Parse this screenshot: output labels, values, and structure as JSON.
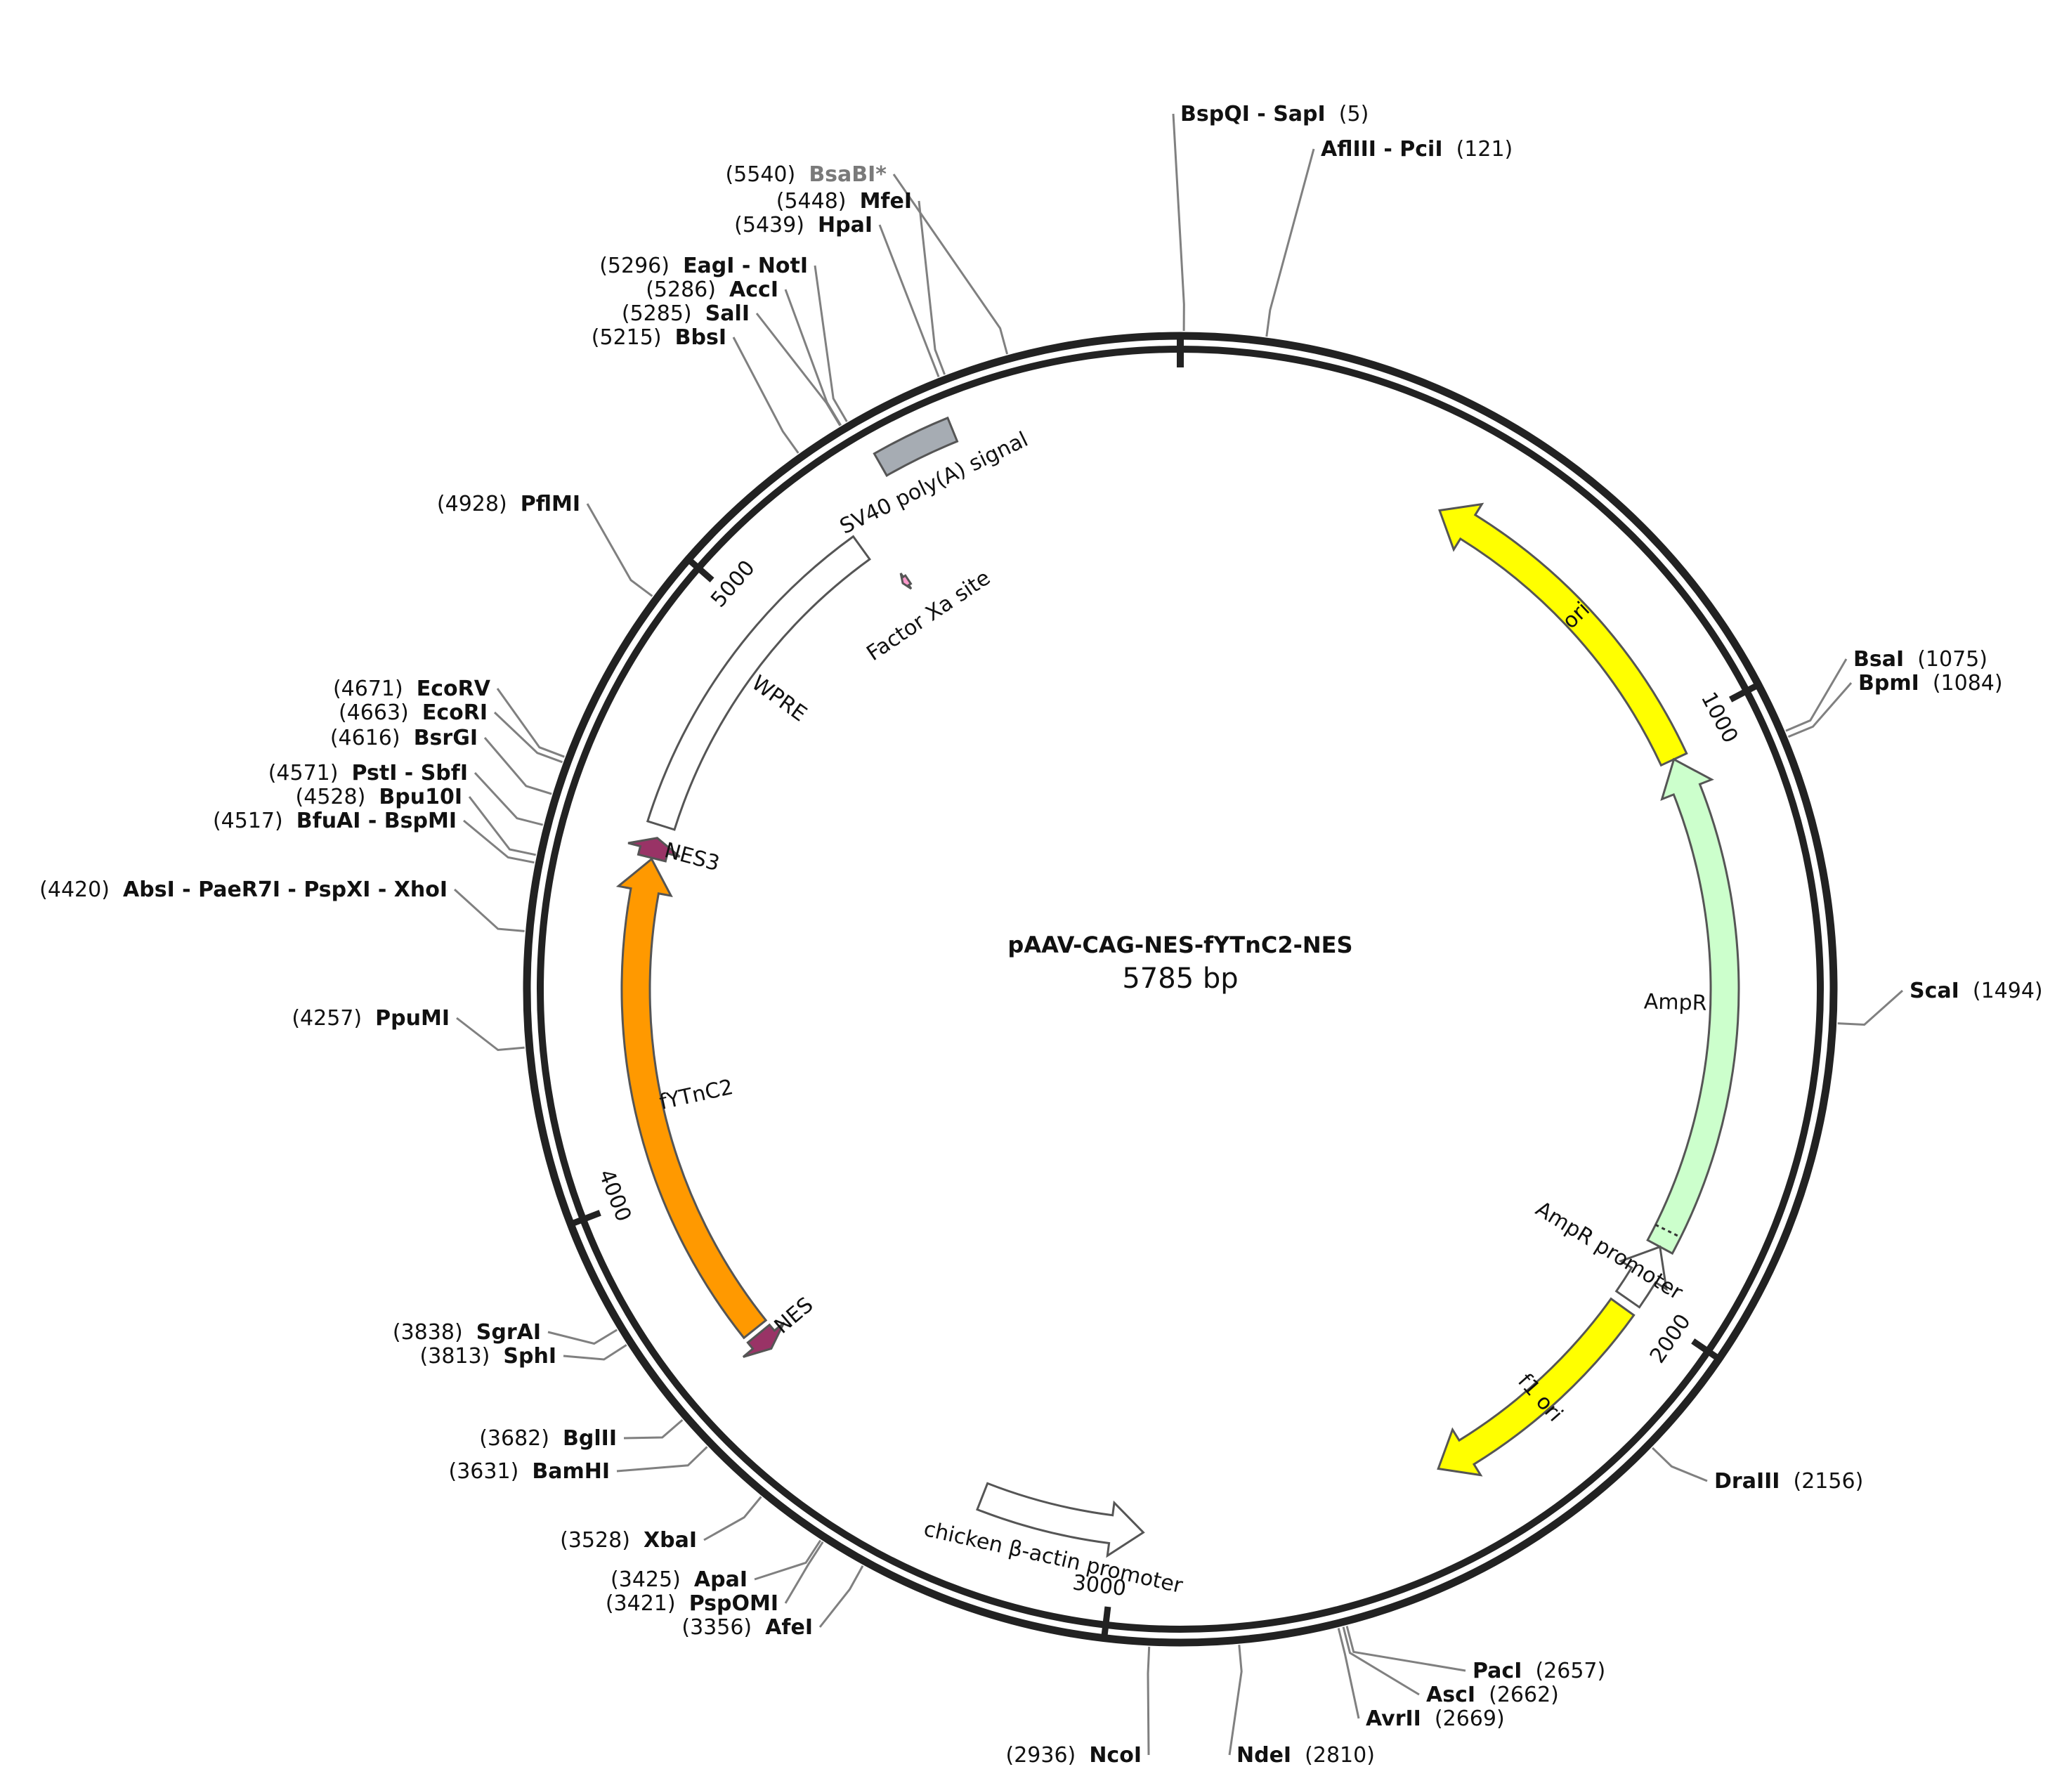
{
  "plasmid": {
    "name": "pAAV-CAG-NES-fYTnC2-NES",
    "length_label": "5785 bp",
    "length": 5785
  },
  "ticks": [
    {
      "pos": 1000,
      "label": "1000"
    },
    {
      "pos": 2000,
      "label": "2000"
    },
    {
      "pos": 3000,
      "label": "3000"
    },
    {
      "pos": 4000,
      "label": "4000"
    },
    {
      "pos": 5000,
      "label": "5000"
    }
  ],
  "features": [
    {
      "id": "ori",
      "label": "ori",
      "start": 1045,
      "end": 457,
      "dir": "ccw",
      "color": "#ffff00"
    },
    {
      "id": "ampr",
      "label": "AmpR",
      "start": 1900,
      "end": 1045,
      "dir": "ccw",
      "color": "#ccffcc"
    },
    {
      "id": "ampr-promoter",
      "label": "AmpR promoter",
      "start": 2004,
      "end": 1900,
      "dir": "ccw",
      "color": "#ffffff"
    },
    {
      "id": "f1-ori",
      "label": "f1 ori",
      "start": 2438,
      "end": 2020,
      "dir": "cw",
      "color": "#ffff00"
    },
    {
      "id": "chicken-actin-promoter",
      "label": "chicken β-actin promoter",
      "start": 2955,
      "end": 3235,
      "dir": "ccw",
      "color": "#ffffff"
    },
    {
      "id": "nes",
      "label": "NES",
      "start": 3675,
      "end": 3708,
      "dir": "ccw",
      "color": "#993366"
    },
    {
      "id": "fytnc2",
      "label": "fYTnC2",
      "start": 3718,
      "end": 4561,
      "dir": "cw",
      "color": "#ff9900"
    },
    {
      "id": "nes3",
      "label": "NES3",
      "start": 4563,
      "end": 4598,
      "dir": "cw",
      "color": "#993366"
    },
    {
      "id": "wpre",
      "label": "WPRE",
      "start": 4620,
      "end": 5209,
      "dir": "none",
      "color": "#ffffff"
    },
    {
      "id": "factor-xa-site",
      "label": "Factor Xa site",
      "start": 5233,
      "end": 5245,
      "dir": "ccw",
      "color": "#ff99cc"
    },
    {
      "id": "sv40-polya",
      "label": "SV40 poly(A) signal",
      "start": 5307,
      "end": 5429,
      "dir": "none",
      "color": "#a6acb3"
    }
  ],
  "sites": [
    {
      "id": "bspqi-sapi",
      "name": "BspQI - SapI",
      "pos_label": "(5)",
      "pos": 5,
      "side": "right",
      "grey": false
    },
    {
      "id": "afliii-pcii",
      "name": "AflIII - PciI",
      "pos_label": "(121)",
      "pos": 121,
      "side": "right",
      "grey": false
    },
    {
      "id": "bsai",
      "name": "BsaI",
      "pos_label": "(1075)",
      "pos": 1075,
      "side": "right",
      "grey": false
    },
    {
      "id": "bpmi",
      "name": "BpmI",
      "pos_label": "(1084)",
      "pos": 1084,
      "side": "right",
      "grey": false
    },
    {
      "id": "scai",
      "name": "ScaI",
      "pos_label": "(1494)",
      "pos": 1494,
      "side": "right",
      "grey": false
    },
    {
      "id": "draiii",
      "name": "DraIII",
      "pos_label": "(2156)",
      "pos": 2156,
      "side": "right",
      "grey": false
    },
    {
      "id": "paci",
      "name": "PacI",
      "pos_label": "(2657)",
      "pos": 2657,
      "side": "right",
      "grey": false
    },
    {
      "id": "asci",
      "name": "AscI",
      "pos_label": "(2662)",
      "pos": 2662,
      "side": "right",
      "grey": false
    },
    {
      "id": "avrii",
      "name": "AvrII",
      "pos_label": "(2669)",
      "pos": 2669,
      "side": "right",
      "grey": false
    },
    {
      "id": "ndei",
      "name": "NdeI",
      "pos_label": "(2810)",
      "pos": 2810,
      "side": "right",
      "grey": false
    },
    {
      "id": "ncoi",
      "name": "NcoI",
      "pos_label": "(2936)",
      "pos": 2936,
      "side": "left",
      "grey": false
    },
    {
      "id": "afei",
      "name": "AfeI",
      "pos_label": "(3356)",
      "pos": 3356,
      "side": "left",
      "grey": false
    },
    {
      "id": "pspomi",
      "name": "PspOMI",
      "pos_label": "(3421)",
      "pos": 3421,
      "side": "left",
      "grey": false
    },
    {
      "id": "apai",
      "name": "ApaI",
      "pos_label": "(3425)",
      "pos": 3425,
      "side": "left",
      "grey": false
    },
    {
      "id": "xbai",
      "name": "XbaI",
      "pos_label": "(3528)",
      "pos": 3528,
      "side": "left",
      "grey": false
    },
    {
      "id": "bamhi",
      "name": "BamHI",
      "pos_label": "(3631)",
      "pos": 3631,
      "side": "left",
      "grey": false
    },
    {
      "id": "bglii",
      "name": "BglII",
      "pos_label": "(3682)",
      "pos": 3682,
      "side": "left",
      "grey": false
    },
    {
      "id": "sphi",
      "name": "SphI",
      "pos_label": "(3813)",
      "pos": 3813,
      "side": "left",
      "grey": false
    },
    {
      "id": "sgrai",
      "name": "SgrAI",
      "pos_label": "(3838)",
      "pos": 3838,
      "side": "left",
      "grey": false
    },
    {
      "id": "ppumi",
      "name": "PpuMI",
      "pos_label": "(4257)",
      "pos": 4257,
      "side": "left",
      "grey": false
    },
    {
      "id": "absi",
      "name": "AbsI - PaeR7I - PspXI - XhoI",
      "pos_label": "(4420)",
      "pos": 4420,
      "side": "left",
      "grey": false
    },
    {
      "id": "bfuai",
      "name": "BfuAI - BspMI",
      "pos_label": "(4517)",
      "pos": 4517,
      "side": "left",
      "grey": false
    },
    {
      "id": "bpu10i",
      "name": "Bpu10I",
      "pos_label": "(4528)",
      "pos": 4528,
      "side": "left",
      "grey": false
    },
    {
      "id": "psti-sbfi",
      "name": "PstI - SbfI",
      "pos_label": "(4571)",
      "pos": 4571,
      "side": "left",
      "grey": false
    },
    {
      "id": "bsrgi",
      "name": "BsrGI",
      "pos_label": "(4616)",
      "pos": 4616,
      "side": "left",
      "grey": false
    },
    {
      "id": "ecori",
      "name": "EcoRI",
      "pos_label": "(4663)",
      "pos": 4663,
      "side": "left",
      "grey": false
    },
    {
      "id": "ecorv",
      "name": "EcoRV",
      "pos_label": "(4671)",
      "pos": 4671,
      "side": "left",
      "grey": false
    },
    {
      "id": "pflmi",
      "name": "PflMI",
      "pos_label": "(4928)",
      "pos": 4928,
      "side": "left",
      "grey": false
    },
    {
      "id": "bbsi",
      "name": "BbsI",
      "pos_label": "(5215)",
      "pos": 5215,
      "side": "left",
      "grey": false
    },
    {
      "id": "sali",
      "name": "SalI",
      "pos_label": "(5285)",
      "pos": 5285,
      "side": "left",
      "grey": false
    },
    {
      "id": "acci",
      "name": "AccI",
      "pos_label": "(5286)",
      "pos": 5286,
      "side": "left",
      "grey": false
    },
    {
      "id": "eagi-noti",
      "name": "EagI - NotI",
      "pos_label": "(5296)",
      "pos": 5296,
      "side": "left",
      "grey": false
    },
    {
      "id": "hpai",
      "name": "HpaI",
      "pos_label": "(5439)",
      "pos": 5439,
      "side": "left",
      "grey": false
    },
    {
      "id": "mfei",
      "name": "MfeI",
      "pos_label": "(5448)",
      "pos": 5448,
      "side": "left",
      "grey": false
    },
    {
      "id": "bsabi",
      "name": "BsaBI*",
      "pos_label": "(5540)",
      "pos": 5540,
      "side": "left",
      "grey": true
    }
  ]
}
